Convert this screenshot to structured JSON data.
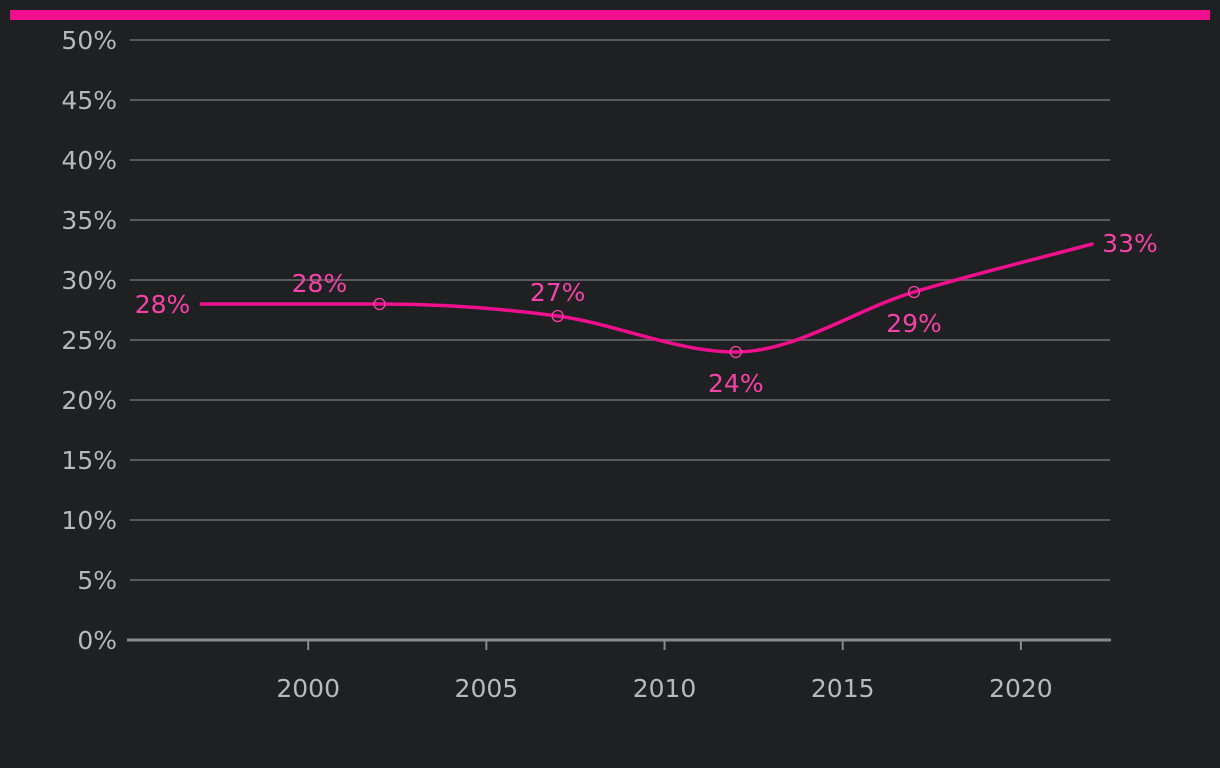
{
  "colors": {
    "background": "#1f2022",
    "accent": "#f0108e",
    "series_line": "#f0108e",
    "data_label": "#f542a8",
    "gridline": "#5a5a5c",
    "baseline": "#8a8a8a",
    "tick_text": "#b9b9b9"
  },
  "chart_data": {
    "type": "line",
    "title": "",
    "xlabel": "",
    "ylabel": "",
    "x": [
      1997,
      2002,
      2007,
      2012,
      2017,
      2022
    ],
    "series": [
      {
        "values": [
          28,
          28,
          27,
          24,
          29,
          33
        ],
        "labels": [
          "28%",
          "28%",
          "27%",
          "24%",
          "29%",
          "33%"
        ],
        "point_markers": [
          false,
          true,
          true,
          true,
          true,
          false
        ]
      }
    ],
    "xlim": [
      1995,
      2022.5
    ],
    "ylim": [
      0,
      50
    ],
    "x_ticks": [
      2000,
      2005,
      2010,
      2015,
      2020
    ],
    "x_tick_labels": [
      "2000",
      "2005",
      "2010",
      "2015",
      "2020"
    ],
    "y_ticks": [
      0,
      5,
      10,
      15,
      20,
      25,
      30,
      35,
      40,
      45,
      50
    ],
    "y_tick_labels": [
      "0%",
      "5%",
      "10%",
      "15%",
      "20%",
      "25%",
      "30%",
      "35%",
      "40%",
      "45%",
      "50%"
    ],
    "grid": true,
    "legend": "none"
  }
}
